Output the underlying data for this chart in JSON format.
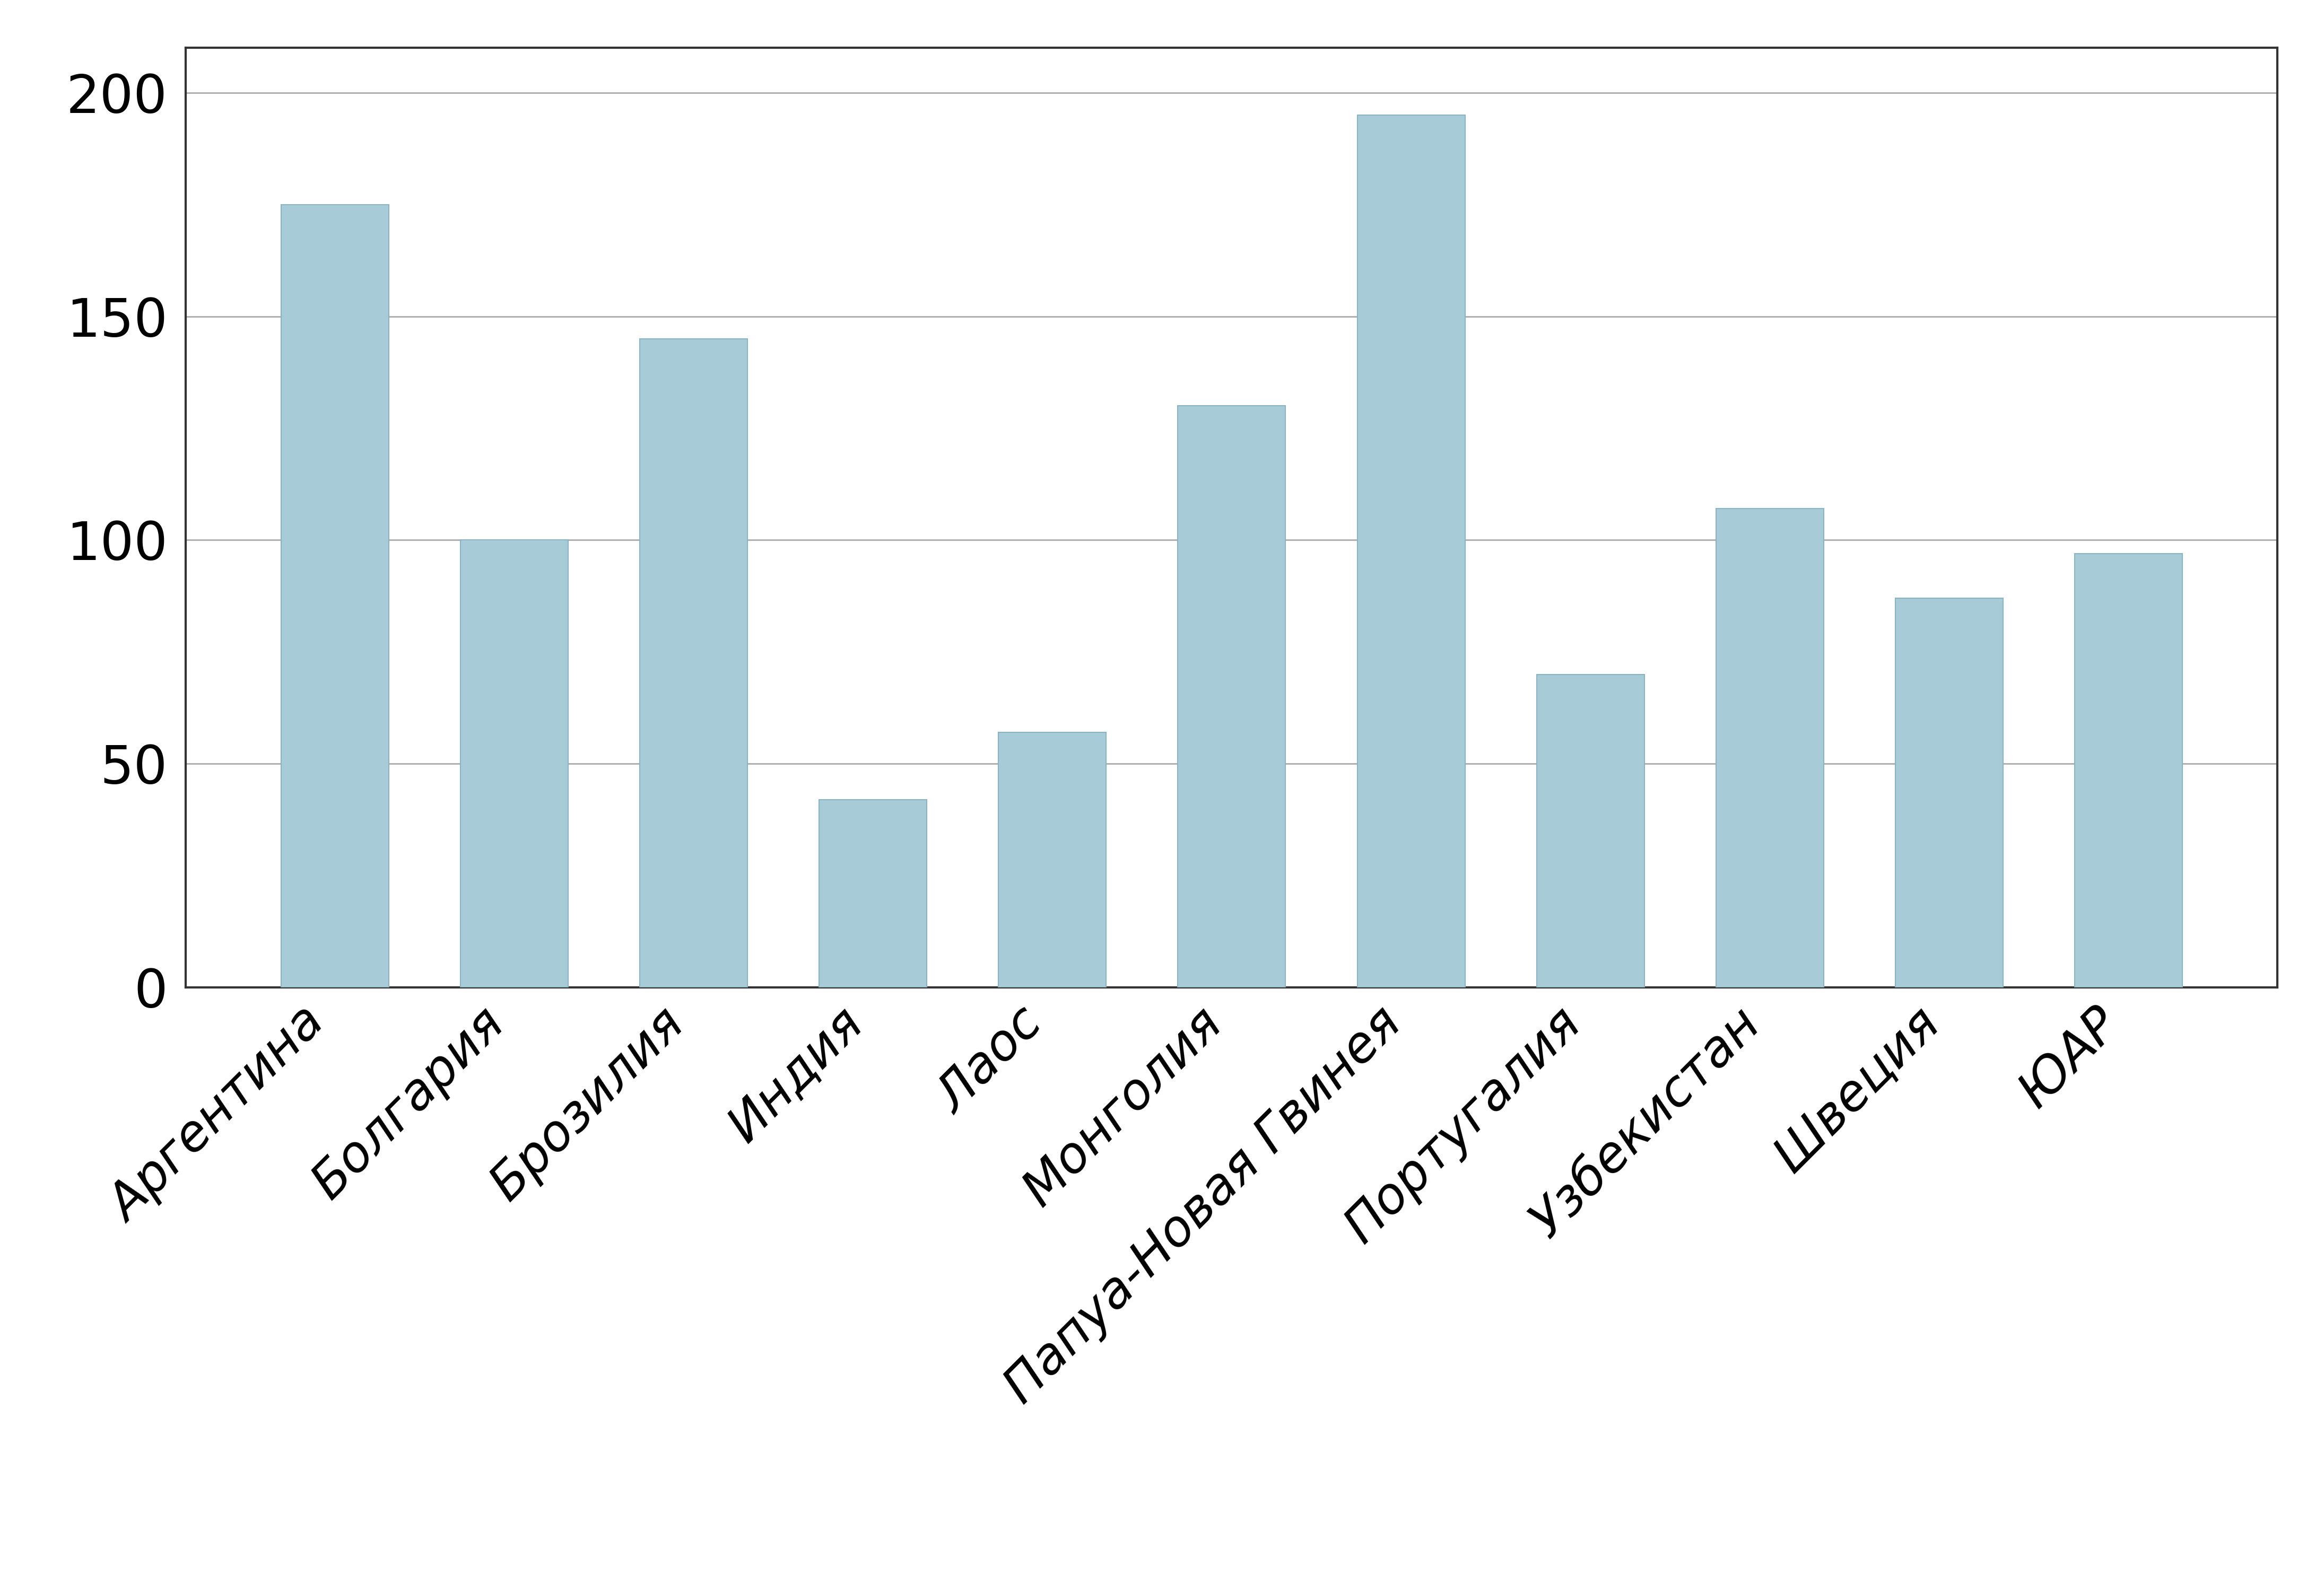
{
  "categories": [
    "Аргентина",
    "Болгария",
    "Брозилия",
    "Индия",
    "Лаос",
    "Монголия",
    "Папуа-Новая Гвинея",
    "Португалия",
    "Узбекистан",
    "Швеция",
    "ЮАР"
  ],
  "values": [
    175,
    100,
    145,
    42,
    57,
    130,
    195,
    70,
    107,
    87,
    97
  ],
  "bar_color": "#a8ccd7",
  "bar_edge_color": "#8ab4c2",
  "background_color": "#ffffff",
  "ylim": [
    0,
    210
  ],
  "yticks": [
    0,
    50,
    100,
    150,
    200
  ],
  "grid_color": "#aaaaaa",
  "tick_fontsize": 72,
  "xlabel_fontsize": 68,
  "bar_width": 0.6,
  "spine_color": "#333333",
  "spine_linewidth": 3
}
